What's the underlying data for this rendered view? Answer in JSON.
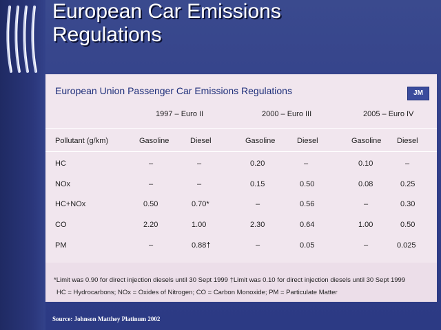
{
  "slide": {
    "title_line1": "European Car Emissions",
    "title_line2": "Regulations",
    "source": "Source: Johnson Matthey Platinum 2002"
  },
  "table": {
    "title": "European Union Passenger Car Emissions Regulations",
    "logo_text": "JM",
    "groups": [
      "1997 – Euro II",
      "2000 – Euro III",
      "2005 – Euro IV"
    ],
    "col_header": "Pollutant (g/km)",
    "fuel_headers": [
      "Gasoline",
      "Diesel",
      "Gasoline",
      "Diesel",
      "Gasoline",
      "Diesel"
    ],
    "rows": [
      {
        "pollutant": "HC",
        "values": [
          "–",
          "–",
          "0.20",
          "–",
          "0.10",
          "–"
        ]
      },
      {
        "pollutant": "NOx",
        "values": [
          "–",
          "–",
          "0.15",
          "0.50",
          "0.08",
          "0.25"
        ]
      },
      {
        "pollutant": "HC+NOx",
        "values": [
          "0.50",
          "0.70*",
          "–",
          "0.56",
          "–",
          "0.30"
        ]
      },
      {
        "pollutant": "CO",
        "values": [
          "2.20",
          "1.00",
          "2.30",
          "0.64",
          "1.00",
          "0.50"
        ]
      },
      {
        "pollutant": "PM",
        "values": [
          "–",
          "0.88†",
          "–",
          "0.05",
          "–",
          "0.025"
        ]
      }
    ],
    "footnote1": "*Limit was 0.90 for direct injection diesels until 30 Sept 1999   †Limit was 0.10 for direct injection diesels until 30 Sept 1999",
    "footnote2": "HC = Hydrocarbons; NOx = Oxides of Nitrogen; CO = Carbon Monoxide; PM = Particulate Matter"
  },
  "colors": {
    "background": "#33408a",
    "panel": "#ecdee9",
    "title_text": "#1e2f7a"
  }
}
